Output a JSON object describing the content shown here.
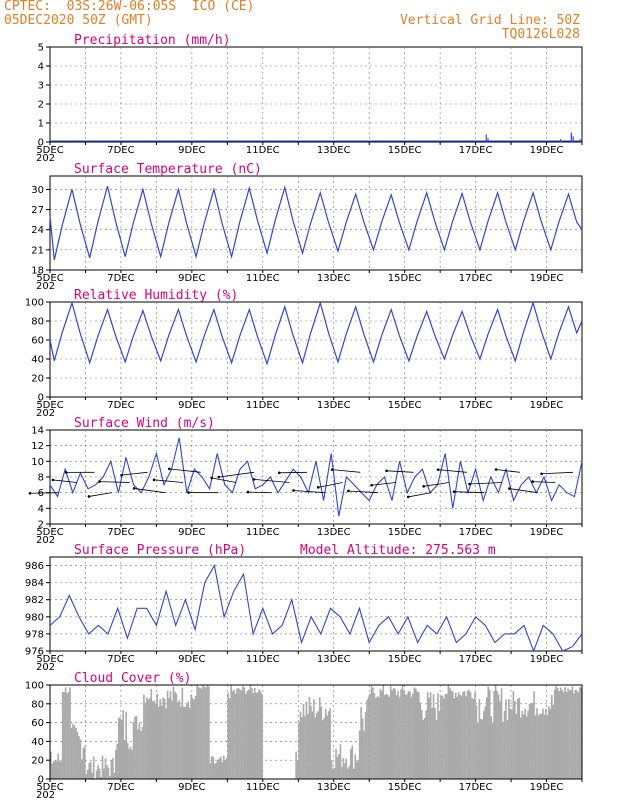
{
  "header": {
    "line1": "CPTEC:  03S:26W-06:05S  ICO (CE)",
    "line2": "05DEC2020 50Z (GMT)",
    "right1": "Vertical Grid Line: 50Z",
    "right2": "TQ0126L028"
  },
  "x_axis": {
    "labels": [
      "5DEC",
      "7DEC",
      "9DEC",
      "11DEC",
      "13DEC",
      "15DEC",
      "17DEC",
      "19DEC"
    ],
    "days_span": 15,
    "sub_label": "202"
  },
  "colors": {
    "line": "#3344dd",
    "title": "#e0007a",
    "header": "#e67e22",
    "bars": "#aaaaaa",
    "grid": "#777777"
  },
  "chart_data": [
    {
      "id": "precip",
      "type": "line",
      "title": "Precipitation (mm/h)",
      "ylim": [
        0,
        5
      ],
      "yticks": [
        0,
        1,
        2,
        3,
        4,
        5
      ],
      "spikes": [
        [
          12.3,
          0.4
        ],
        [
          12.35,
          0.2
        ],
        [
          14.4,
          0.15
        ],
        [
          14.7,
          0.5
        ],
        [
          14.75,
          0.3
        ],
        [
          14.95,
          0.15
        ]
      ]
    },
    {
      "id": "temp",
      "type": "line",
      "title": "Surface Temperature (nC)",
      "ylim": [
        18,
        32
      ],
      "yticks": [
        18,
        21,
        24,
        27,
        30
      ],
      "peaks": [
        30,
        30.5,
        30,
        30,
        30,
        30.2,
        30.3,
        29.5,
        29.3,
        29.2,
        29.5,
        29.4,
        29.5,
        29.5,
        29.3
      ],
      "mins": [
        19.5,
        19.8,
        20,
        20,
        20,
        20,
        20.5,
        20.5,
        20.8,
        21,
        21,
        21,
        21,
        21,
        21
      ]
    },
    {
      "id": "rh",
      "type": "line",
      "title": "Relative Humidity (%)",
      "ylim": [
        0,
        100
      ],
      "yticks": [
        0,
        20,
        40,
        60,
        80,
        100
      ],
      "peaks": [
        99,
        92,
        91,
        92,
        92,
        92,
        95,
        99,
        95,
        92,
        90,
        90,
        92,
        99,
        95
      ],
      "mins": [
        38,
        36,
        37,
        38,
        37,
        36,
        35,
        36,
        37,
        37,
        38,
        40,
        40,
        38,
        40
      ]
    },
    {
      "id": "wind",
      "type": "line",
      "title": "Surface Wind (m/s)",
      "ylim": [
        2,
        14
      ],
      "yticks": [
        2,
        4,
        6,
        8,
        10,
        12,
        14
      ],
      "values": [
        7,
        5.5,
        9,
        6,
        8.5,
        6.5,
        7,
        8,
        10,
        6,
        10.5,
        7,
        6,
        8,
        11,
        7,
        9,
        13,
        6,
        9,
        8,
        6.5,
        11,
        7,
        6,
        9,
        10,
        6.5,
        7,
        8,
        6,
        7.5,
        9,
        8,
        6,
        10,
        5,
        11,
        3,
        8,
        7,
        6,
        5,
        7,
        8,
        5,
        10,
        6,
        8,
        9,
        6,
        7,
        11,
        4,
        10,
        6,
        9,
        5,
        8,
        6,
        9,
        5,
        7,
        8,
        6,
        8,
        5,
        7,
        6,
        5.5,
        10
      ]
    },
    {
      "id": "pres",
      "type": "line",
      "title": "Surface Pressure (hPa)",
      "annotation": "Model Altitude: 275.563 m",
      "ylim": [
        976,
        987
      ],
      "yticks": [
        976,
        978,
        980,
        982,
        984,
        986
      ],
      "values": [
        979,
        980,
        982.5,
        980,
        978,
        979,
        978,
        981,
        977.5,
        981,
        981,
        979,
        983,
        979,
        982,
        978.5,
        984,
        986,
        980,
        983,
        985,
        978,
        981,
        978,
        979,
        982,
        977,
        980,
        978,
        981,
        980,
        978,
        981,
        977,
        979,
        980,
        978,
        980,
        977,
        979,
        978,
        980,
        977,
        978,
        980,
        979,
        977,
        978,
        978,
        979,
        976,
        979,
        978,
        976,
        976.5,
        978
      ]
    },
    {
      "id": "cloud",
      "type": "bar",
      "title": "Cloud Cover (%)",
      "ylim": [
        0,
        100
      ],
      "yticks": [
        0,
        20,
        40,
        60,
        80,
        100
      ]
    }
  ]
}
